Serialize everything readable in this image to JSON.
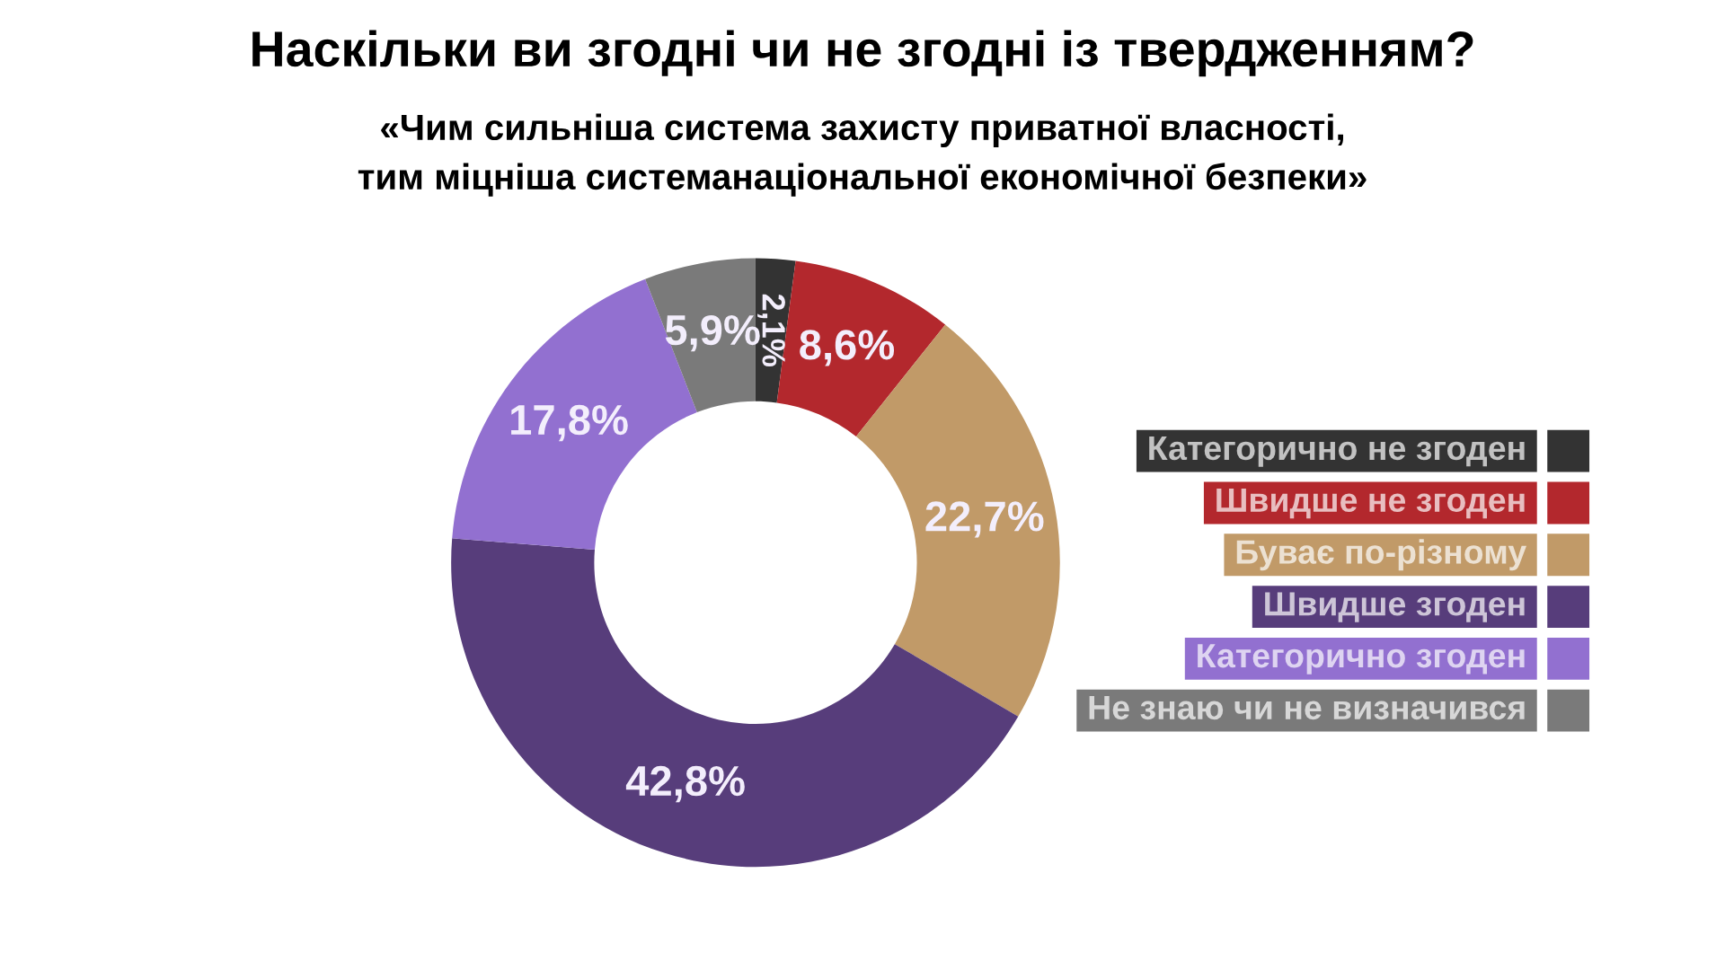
{
  "chart_data": {
    "type": "donut",
    "title": "Наскільки ви згодні чи не згодні із твердженням?",
    "subtitle": "«Чим сильніша система захисту приватної власності,\nтим міцніша системанаціональної економічної безпеки»",
    "categories": [
      "Категорично не згоден",
      "Швидше не згоден",
      "Буває по-різному",
      "Швидше згоден",
      "Категорично згоден",
      "Не знаю чи не визначився"
    ],
    "values": [
      2.1,
      8.6,
      22.7,
      42.8,
      17.8,
      5.9
    ],
    "colors": [
      "#333333",
      "#b3282d",
      "#c19a68",
      "#573d7b",
      "#9270d0",
      "#7a7a7a"
    ],
    "value_labels": [
      "2,1%",
      "8,6%",
      "22,7%",
      "42,8%",
      "17,8%",
      "5,9%"
    ],
    "legend": "right"
  }
}
